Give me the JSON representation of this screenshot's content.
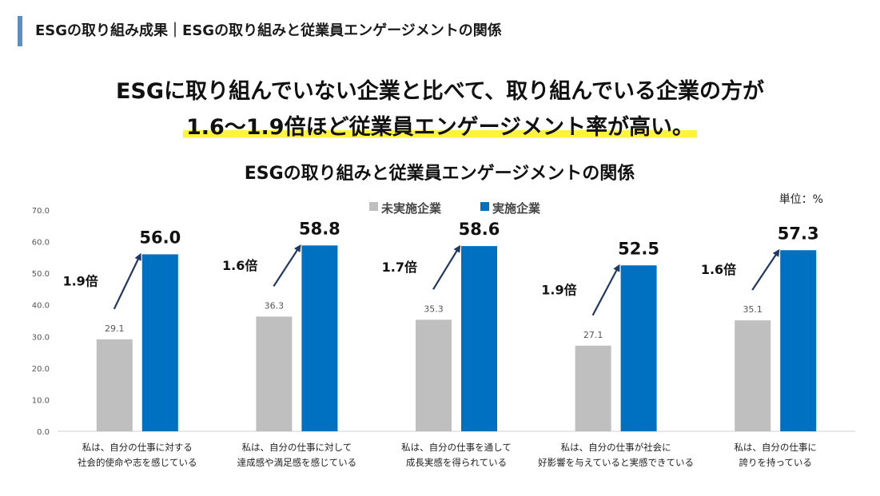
{
  "header": {
    "title": "ESGの取り組み成果｜ESGの取り組みと従業員エンゲージメントの関係"
  },
  "headline": {
    "line1": "ESGに取り組んでいない企業と比べて、取り組んでいる企業の方が",
    "line2": "1.6～1.9倍ほど従業員エンゲージメント率が高い。"
  },
  "colors": {
    "not_implemented": "#bfbfbf",
    "implemented": "#0070c0",
    "arrow": "#1f3864",
    "header_accent": "#5b8fc2",
    "highlight": "#fff33b"
  },
  "chart_data": {
    "type": "bar",
    "title": "ESGの取り組みと従業員エンゲージメントの関係",
    "unit_label": "単位：%",
    "ylim": [
      0,
      70
    ],
    "yticks": [
      "0.0",
      "10.0",
      "20.0",
      "30.0",
      "40.0",
      "50.0",
      "60.0",
      "70.0"
    ],
    "legend_position": "top-center",
    "categories": [
      [
        "私は、自分の仕事に対する",
        "社会的使命や志を感じている"
      ],
      [
        "私は、自分の仕事に対して",
        "達成感や満足感を感じている"
      ],
      [
        "私は、自分の仕事を通して",
        "成長実感を得られている"
      ],
      [
        "私は、自分の仕事が社会に",
        "好影響を与えていると実感できている"
      ],
      [
        "私は、自分の仕事に",
        "誇りを持っている"
      ]
    ],
    "series": [
      {
        "name": "未実施企業",
        "values": [
          29.1,
          36.3,
          35.3,
          27.1,
          35.1
        ],
        "labels": [
          "29.1",
          "36.3",
          "35.3",
          "27.1",
          "35.1"
        ]
      },
      {
        "name": "実施企業",
        "values": [
          56.0,
          58.8,
          58.6,
          52.5,
          57.3
        ],
        "labels": [
          "56.0",
          "58.8",
          "58.6",
          "52.5",
          "57.3"
        ]
      }
    ],
    "ratios": [
      "1.9倍",
      "1.6倍",
      "1.7倍",
      "1.9倍",
      "1.6倍"
    ]
  }
}
